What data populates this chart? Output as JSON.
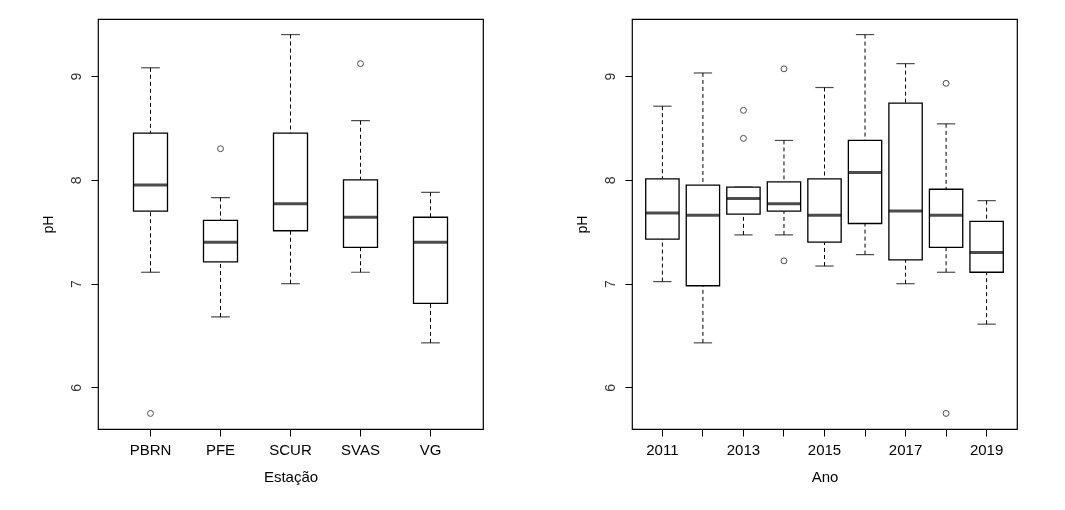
{
  "chart_data": [
    {
      "type": "box",
      "xlabel": "Estação",
      "ylabel": "pH",
      "categories": [
        "PBRN",
        "PFE",
        "SCUR",
        "SVAS",
        "VG"
      ],
      "ylim": [
        5.6,
        9.55
      ],
      "yticks": [
        6,
        7,
        8,
        9
      ],
      "boxes": [
        {
          "low": 7.11,
          "q1": 7.7,
          "median": 7.95,
          "q3": 8.45,
          "high": 9.08,
          "outliers": [
            5.75
          ]
        },
        {
          "low": 6.68,
          "q1": 7.21,
          "median": 7.4,
          "q3": 7.61,
          "high": 7.83,
          "outliers": [
            8.3
          ]
        },
        {
          "low": 7.0,
          "q1": 7.51,
          "median": 7.77,
          "q3": 8.45,
          "high": 9.4
        },
        {
          "low": 7.11,
          "q1": 7.35,
          "median": 7.64,
          "q3": 8.0,
          "high": 8.57,
          "outliers": [
            9.12
          ]
        },
        {
          "low": 6.43,
          "q1": 6.81,
          "median": 7.4,
          "q3": 7.64,
          "high": 7.88
        }
      ]
    },
    {
      "type": "box",
      "xlabel": "Ano",
      "ylabel": "pH",
      "categories": [
        "2011",
        null,
        "2013",
        null,
        "2015",
        null,
        "2017",
        null,
        "2019"
      ],
      "ylim": [
        5.6,
        9.55
      ],
      "yticks": [
        6,
        7,
        8,
        9
      ],
      "boxes": [
        {
          "low": 7.02,
          "q1": 7.43,
          "median": 7.68,
          "q3": 8.01,
          "high": 8.71
        },
        {
          "low": 6.43,
          "q1": 6.98,
          "median": 7.66,
          "q3": 7.95,
          "high": 9.03
        },
        {
          "low": 7.47,
          "q1": 7.67,
          "median": 7.82,
          "q3": 7.93,
          "high": 7.93,
          "outliers": [
            8.67,
            8.4
          ]
        },
        {
          "low": 7.47,
          "q1": 7.7,
          "median": 7.77,
          "q3": 7.98,
          "high": 8.38,
          "outliers": [
            9.07,
            7.22
          ]
        },
        {
          "low": 7.17,
          "q1": 7.4,
          "median": 7.66,
          "q3": 8.01,
          "high": 8.89
        },
        {
          "low": 7.28,
          "q1": 7.58,
          "median": 8.07,
          "q3": 8.38,
          "high": 9.4
        },
        {
          "low": 7.0,
          "q1": 7.23,
          "median": 7.7,
          "q3": 8.74,
          "high": 9.12
        },
        {
          "low": 7.11,
          "q1": 7.35,
          "median": 7.66,
          "q3": 7.91,
          "high": 8.54,
          "outliers": [
            8.93,
            5.75
          ]
        },
        {
          "low": 6.61,
          "q1": 7.11,
          "median": 7.3,
          "q3": 7.6,
          "high": 7.8
        }
      ]
    }
  ]
}
